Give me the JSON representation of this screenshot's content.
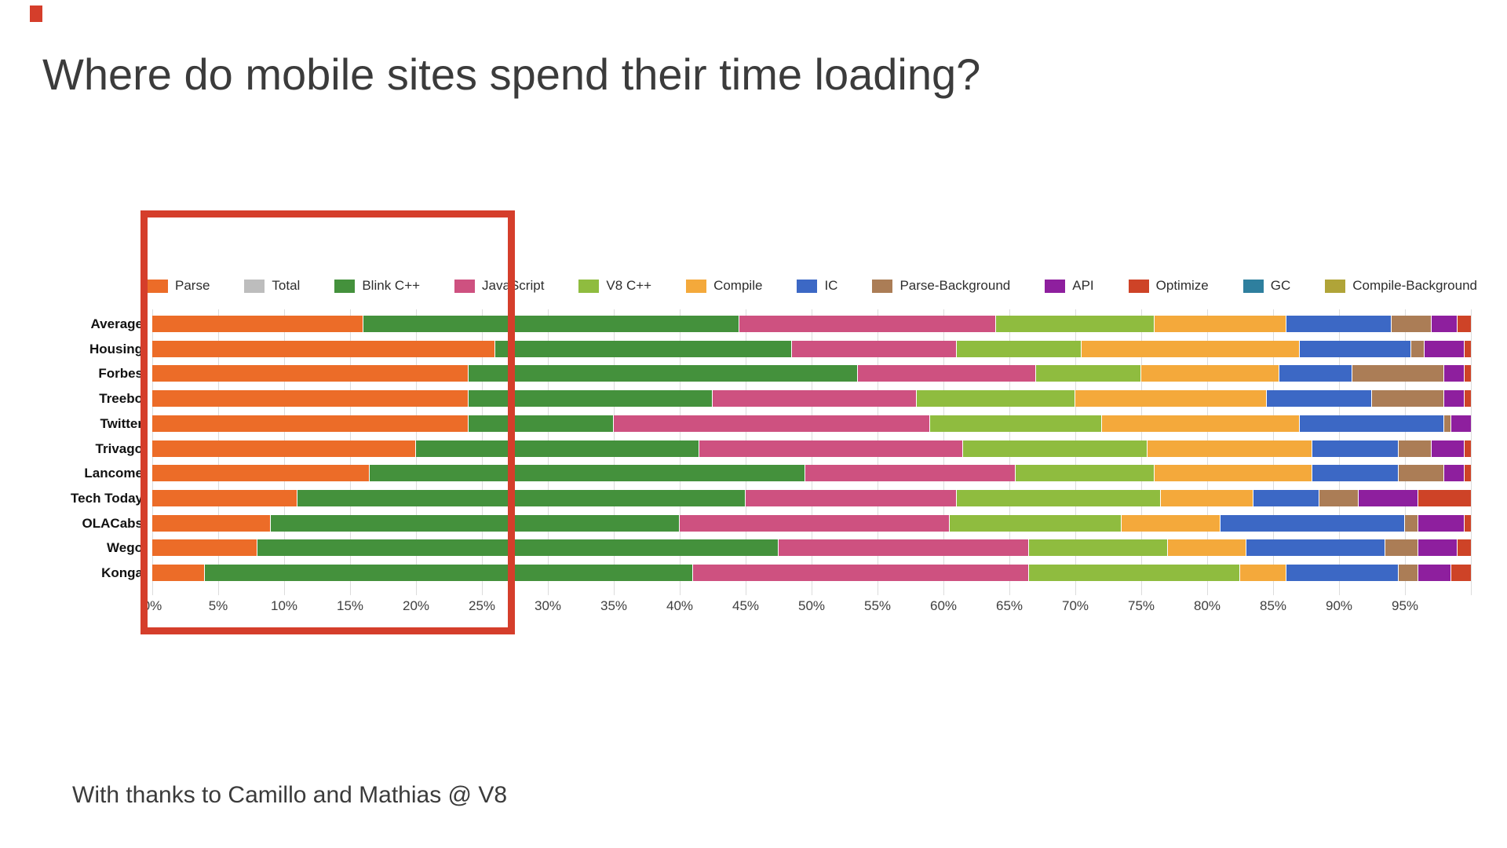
{
  "title": "Where do mobile sites spend their time loading?",
  "footer": "With thanks to Camillo and Mathias @ V8",
  "accent_color": "#d53e2b",
  "chart_data": {
    "type": "bar",
    "stacked": true,
    "orientation": "horizontal",
    "title": "",
    "xlabel": "",
    "ylabel": "",
    "unit": "percent",
    "xlim": [
      0,
      100
    ],
    "grid": true,
    "legend_position": "top",
    "x_tick_labels": [
      "0%",
      "5%",
      "10%",
      "15%",
      "20%",
      "25%",
      "30%",
      "35%",
      "40%",
      "45%",
      "50%",
      "55%",
      "60%",
      "65%",
      "70%",
      "75%",
      "80%",
      "85%",
      "90%",
      "95%"
    ],
    "legend": [
      {
        "label": "Parse",
        "color": "#ec6c28"
      },
      {
        "label": "Total",
        "color": "#bdbdbd"
      },
      {
        "label": "Blink C++",
        "color": "#44913c"
      },
      {
        "label": "JavaScript",
        "color": "#ce5180"
      },
      {
        "label": "V8 C++",
        "color": "#8fbc3f"
      },
      {
        "label": "Compile",
        "color": "#f4a93b"
      },
      {
        "label": "IC",
        "color": "#3c68c5"
      },
      {
        "label": "Parse-Background",
        "color": "#ab7d56"
      },
      {
        "label": "API",
        "color": "#8e1f9e"
      },
      {
        "label": "Optimize",
        "color": "#ce4327"
      },
      {
        "label": "GC",
        "color": "#2e7f9e"
      },
      {
        "label": "Compile-Background",
        "color": "#b0a438"
      }
    ],
    "categories": [
      "Average",
      "Housing",
      "Forbes",
      "Treebo",
      "Twitter",
      "Trivago",
      "Lancome",
      "Tech Today",
      "OLACabs",
      "Wego",
      "Konga"
    ],
    "series": [
      {
        "name": "Parse",
        "values": [
          16,
          26,
          24,
          24,
          24,
          20,
          16.5,
          11,
          9,
          8,
          4
        ]
      },
      {
        "name": "Blink C++",
        "values": [
          28.5,
          22.5,
          29.5,
          18.5,
          11,
          21.5,
          33,
          34,
          31,
          39.5,
          37
        ]
      },
      {
        "name": "JavaScript",
        "values": [
          19.5,
          12.5,
          13.5,
          15.5,
          24,
          20,
          16,
          16,
          20.5,
          19,
          25.5
        ]
      },
      {
        "name": "V8 C++",
        "values": [
          12,
          9.5,
          8,
          12,
          13,
          14,
          10.5,
          15.5,
          13,
          10.5,
          16
        ]
      },
      {
        "name": "Compile",
        "values": [
          10,
          16.5,
          10.5,
          14.5,
          15,
          12.5,
          12,
          7,
          7.5,
          6,
          3.5
        ]
      },
      {
        "name": "IC",
        "values": [
          8,
          8.5,
          5.5,
          8,
          11,
          6.5,
          6.5,
          5,
          14,
          10.5,
          8.5
        ]
      },
      {
        "name": "Parse-Background",
        "values": [
          3,
          1,
          7,
          5.5,
          0.5,
          2.5,
          3.5,
          3,
          1,
          2.5,
          1.5
        ]
      },
      {
        "name": "API",
        "values": [
          2,
          3,
          1.5,
          1.5,
          1.5,
          2.5,
          1.5,
          4.5,
          3.5,
          3,
          2.5
        ]
      },
      {
        "name": "Optimize",
        "values": [
          1,
          0.5,
          0.5,
          0.5,
          0,
          0.5,
          0.5,
          4,
          0.5,
          1,
          1.5
        ]
      }
    ],
    "annotation": {
      "shape": "rectangle",
      "color": "#d53e2b",
      "x_range_percent": [
        -1,
        27.5
      ],
      "covers": "Parse and Blink C++ portion of all bars plus legend items Parse through JavaScript"
    }
  }
}
